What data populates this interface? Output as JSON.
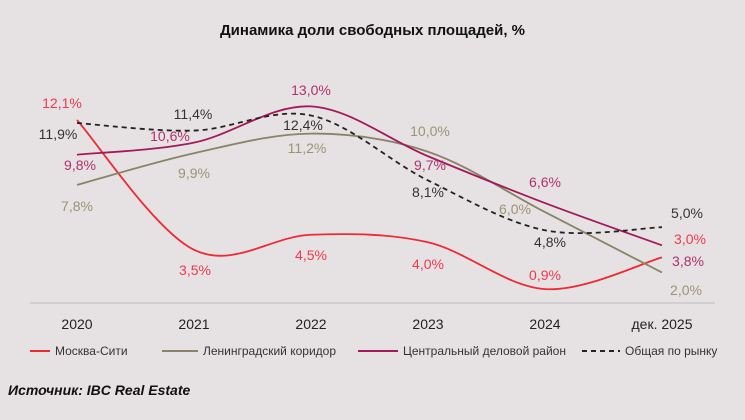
{
  "chart_data": {
    "type": "line",
    "title": "Динамика доли свободных площадей, %",
    "categories": [
      "2020",
      "2021",
      "2022",
      "2023",
      "2024",
      "дек. 2025"
    ],
    "series": [
      {
        "name": "Москва-Сити",
        "values": [
          12.1,
          3.5,
          4.5,
          4.0,
          0.9,
          3.0
        ],
        "labels": [
          "12,1%",
          "3,5%",
          "4,5%",
          "4,0%",
          "0,9%",
          "3,0%"
        ],
        "color": "#ee2a33",
        "dashed": false
      },
      {
        "name": "Ленинградский коридор",
        "values": [
          7.8,
          9.9,
          11.2,
          10.0,
          6.0,
          2.0
        ],
        "labels": [
          "7,8%",
          "9,9%",
          "11,2%",
          "10,0%",
          "6,0%",
          "2,0%"
        ],
        "color": "#8a8466",
        "dashed": false
      },
      {
        "name": "Центральный деловой район",
        "values": [
          9.8,
          10.6,
          13.0,
          9.7,
          6.6,
          3.8
        ],
        "labels": [
          "9,8%",
          "10,6%",
          "13,0%",
          "9,7%",
          "6,6%",
          "3,8%"
        ],
        "color": "#a3195b",
        "dashed": false
      },
      {
        "name": "Общая по рынку",
        "values": [
          11.9,
          11.4,
          12.4,
          8.1,
          4.8,
          5.0
        ],
        "labels": [
          "11,9%",
          "11,4%",
          "12,4%",
          "8,1%",
          "4,8%",
          "5,0%"
        ],
        "color": "#222222",
        "dashed": true
      }
    ],
    "label_colors": [
      "#ee3a4a",
      "#9a9474",
      "#b0306e",
      "#333333"
    ],
    "ylim": [
      0,
      14
    ],
    "grid": false,
    "legend": "bottom"
  },
  "source": "Источник: IBC Real Estate"
}
